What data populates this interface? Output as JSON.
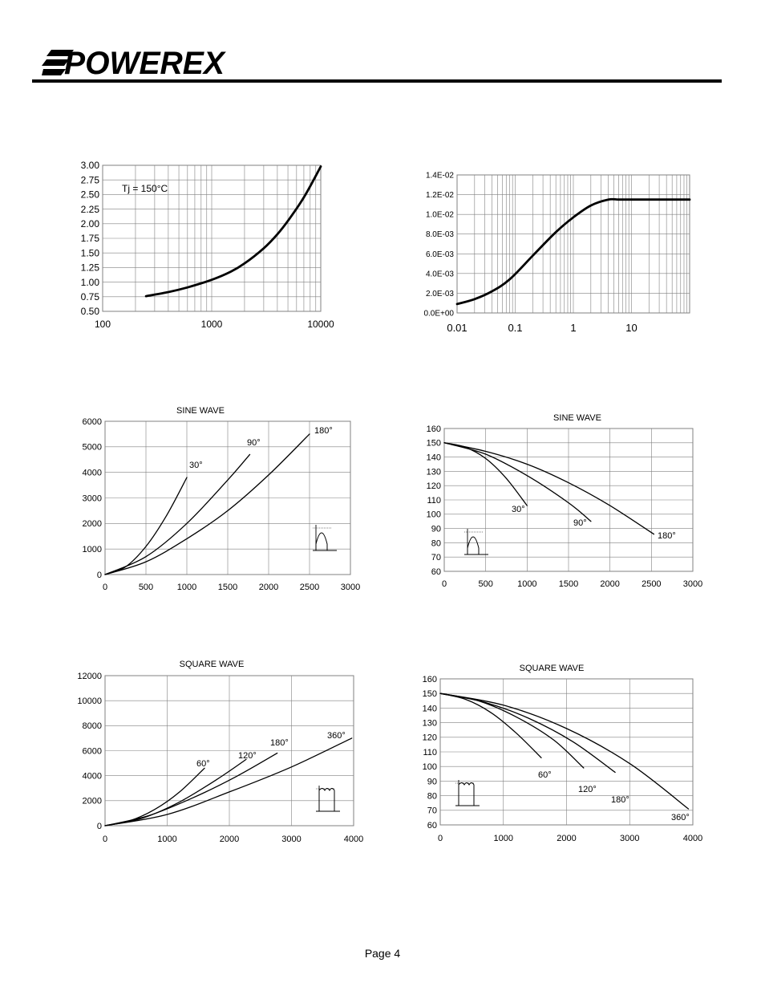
{
  "header": {
    "logo_text": "POWEREX"
  },
  "footer": {
    "page_label": "Page 4"
  },
  "chart_data": [
    {
      "id": "c1",
      "type": "line",
      "title": "",
      "xscale": "log",
      "xlim": [
        100,
        10000
      ],
      "ylim": [
        0.5,
        3.0
      ],
      "x_ticks": [
        "100",
        "1000",
        "10000"
      ],
      "y_ticks": [
        "0.50",
        "0.75",
        "1.00",
        "1.25",
        "1.50",
        "1.75",
        "2.00",
        "2.25",
        "2.50",
        "2.75",
        "3.00"
      ],
      "annotation": "Tj = 150°C",
      "grid": true,
      "series": [
        {
          "x": [
            250,
            400,
            600,
            1000,
            1500,
            2000,
            3000,
            4000,
            5000,
            7000,
            10000
          ],
          "y": [
            0.76,
            0.83,
            0.91,
            1.04,
            1.18,
            1.32,
            1.58,
            1.82,
            2.05,
            2.45,
            2.98
          ]
        }
      ]
    },
    {
      "id": "c2",
      "type": "line",
      "title": "",
      "xscale": "log",
      "xlim": [
        0.01,
        100
      ],
      "ylim": [
        0,
        0.014
      ],
      "x_ticks": [
        "0.01",
        "0.1",
        "1",
        "10"
      ],
      "y_ticks": [
        "0.0E+00",
        "2.0E-03",
        "4.0E-03",
        "6.0E-03",
        "8.0E-03",
        "1.0E-02",
        "1.2E-02",
        "1.4E-02"
      ],
      "grid": true,
      "series": [
        {
          "x": [
            0.01,
            0.02,
            0.04,
            0.08,
            0.2,
            0.5,
            1,
            2,
            4,
            6,
            10,
            100
          ],
          "y": [
            0.0009,
            0.0014,
            0.0022,
            0.0034,
            0.0058,
            0.0082,
            0.0097,
            0.0109,
            0.0115,
            0.0115,
            0.0115,
            0.0115
          ]
        }
      ]
    },
    {
      "id": "c3",
      "type": "line",
      "title": "SINE WAVE",
      "xlim": [
        0,
        3000
      ],
      "ylim": [
        0,
        6000
      ],
      "x_ticks": [
        "0",
        "500",
        "1000",
        "1500",
        "2000",
        "2500",
        "3000"
      ],
      "y_ticks": [
        "0",
        "1000",
        "2000",
        "3000",
        "4000",
        "5000",
        "6000"
      ],
      "grid": true,
      "icon": "sine-waveform-icon",
      "series": [
        {
          "name": "30°",
          "x": [
            0,
            250,
            500,
            750,
            1000
          ],
          "y": [
            0,
            300,
            1100,
            2300,
            3800
          ]
        },
        {
          "name": "90°",
          "x": [
            0,
            500,
            1000,
            1500,
            1770
          ],
          "y": [
            0,
            700,
            2000,
            3700,
            4700
          ]
        },
        {
          "name": "180°",
          "x": [
            0,
            500,
            1000,
            1500,
            2000,
            2500
          ],
          "y": [
            0,
            500,
            1400,
            2500,
            3900,
            5500
          ]
        }
      ]
    },
    {
      "id": "c4",
      "type": "line",
      "title": "SINE WAVE",
      "xlim": [
        0,
        3000
      ],
      "ylim": [
        60,
        160
      ],
      "x_ticks": [
        "0",
        "500",
        "1000",
        "1500",
        "2000",
        "2500",
        "3000"
      ],
      "y_ticks": [
        "60",
        "70",
        "80",
        "90",
        "100",
        "110",
        "120",
        "130",
        "140",
        "150",
        "160"
      ],
      "grid": true,
      "icon": "sine-waveform-icon",
      "series": [
        {
          "name": "30°",
          "x": [
            0,
            250,
            500,
            750,
            1000
          ],
          "y": [
            150,
            147,
            139,
            125,
            106
          ]
        },
        {
          "name": "90°",
          "x": [
            0,
            500,
            1000,
            1500,
            1770
          ],
          "y": [
            150,
            142,
            127,
            108,
            95
          ]
        },
        {
          "name": "180°",
          "x": [
            0,
            500,
            1000,
            1500,
            2000,
            2530
          ],
          "y": [
            150,
            144,
            135,
            122,
            106,
            86
          ]
        }
      ]
    },
    {
      "id": "c5",
      "type": "line",
      "title": "SQUARE WAVE",
      "xlim": [
        0,
        4000
      ],
      "ylim": [
        0,
        12000
      ],
      "x_ticks": [
        "0",
        "1000",
        "2000",
        "3000",
        "4000"
      ],
      "y_ticks": [
        "0",
        "2000",
        "4000",
        "6000",
        "8000",
        "10000",
        "12000"
      ],
      "grid": true,
      "icon": "square-waveform-icon",
      "series": [
        {
          "name": "60°",
          "x": [
            0,
            400,
            800,
            1200,
            1600
          ],
          "y": [
            0,
            400,
            1300,
            2700,
            4600
          ]
        },
        {
          "name": "120°",
          "x": [
            0,
            600,
            1200,
            1800,
            2270
          ],
          "y": [
            0,
            600,
            1900,
            3700,
            5300
          ]
        },
        {
          "name": "180°",
          "x": [
            0,
            700,
            1400,
            2100,
            2770
          ],
          "y": [
            0,
            800,
            2200,
            3900,
            5800
          ]
        },
        {
          "name": "360°",
          "x": [
            0,
            1000,
            2000,
            3000,
            3970
          ],
          "y": [
            0,
            900,
            2700,
            4700,
            7000
          ]
        }
      ]
    },
    {
      "id": "c6",
      "type": "line",
      "title": "SQUARE WAVE",
      "xlim": [
        0,
        4000
      ],
      "ylim": [
        60,
        160
      ],
      "x_ticks": [
        "0",
        "1000",
        "2000",
        "3000",
        "4000"
      ],
      "y_ticks": [
        "60",
        "70",
        "80",
        "90",
        "100",
        "110",
        "120",
        "130",
        "140",
        "150",
        "160"
      ],
      "grid": true,
      "icon": "square-waveform-icon",
      "series": [
        {
          "name": "60°",
          "x": [
            0,
            400,
            800,
            1200,
            1600
          ],
          "y": [
            150,
            146,
            137,
            123,
            106
          ]
        },
        {
          "name": "120°",
          "x": [
            0,
            600,
            1200,
            1800,
            2270
          ],
          "y": [
            150,
            145,
            134,
            118,
            99
          ]
        },
        {
          "name": "180°",
          "x": [
            0,
            700,
            1400,
            2100,
            2770
          ],
          "y": [
            150,
            144,
            133,
            117,
            96
          ]
        },
        {
          "name": "360°",
          "x": [
            0,
            1000,
            2000,
            3000,
            3930
          ],
          "y": [
            150,
            142,
            126,
            102,
            71
          ]
        }
      ]
    }
  ]
}
